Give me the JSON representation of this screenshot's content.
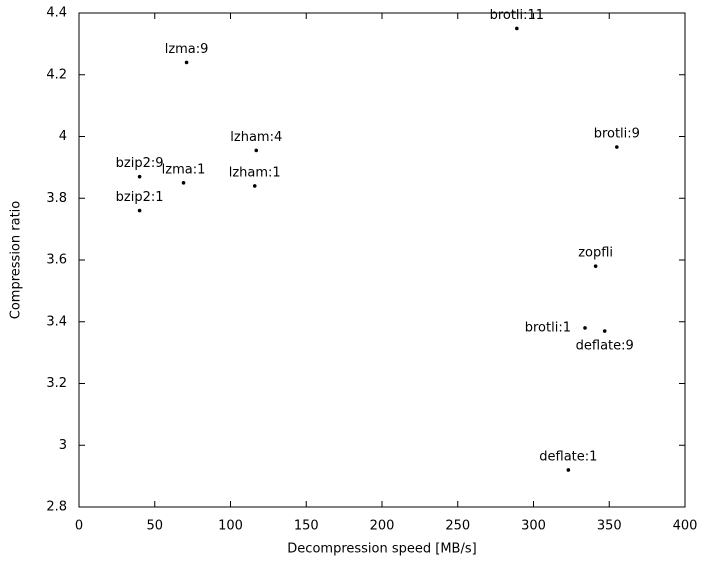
{
  "chart_data": {
    "type": "scatter",
    "x_label": "Decompression speed [MB/s]",
    "y_label": "Compression ratio",
    "labels": [
      "brotli:11",
      "lzma:9",
      "lzham:4",
      "brotli:9",
      "bzip2:9",
      "lzma:1",
      "lzham:1",
      "bzip2:1",
      "zopfli",
      "brotli:1",
      "deflate:9",
      "deflate:1"
    ],
    "x": [
      289,
      71,
      117,
      355,
      40,
      69,
      116,
      40,
      341,
      334,
      347,
      323
    ],
    "values": [
      4.35,
      4.24,
      3.955,
      3.966,
      3.87,
      3.85,
      3.84,
      3.76,
      3.58,
      3.38,
      3.37,
      2.92
    ],
    "color": "#000000",
    "xlim": [
      0,
      400
    ],
    "xticks": [
      0,
      50,
      100,
      150,
      200,
      250,
      300,
      350,
      400
    ],
    "ylim": [
      2.8,
      4.4
    ],
    "yticks": [
      2.8,
      3,
      3.2,
      3.4,
      3.6,
      3.8,
      4,
      4.2,
      4.4
    ]
  }
}
